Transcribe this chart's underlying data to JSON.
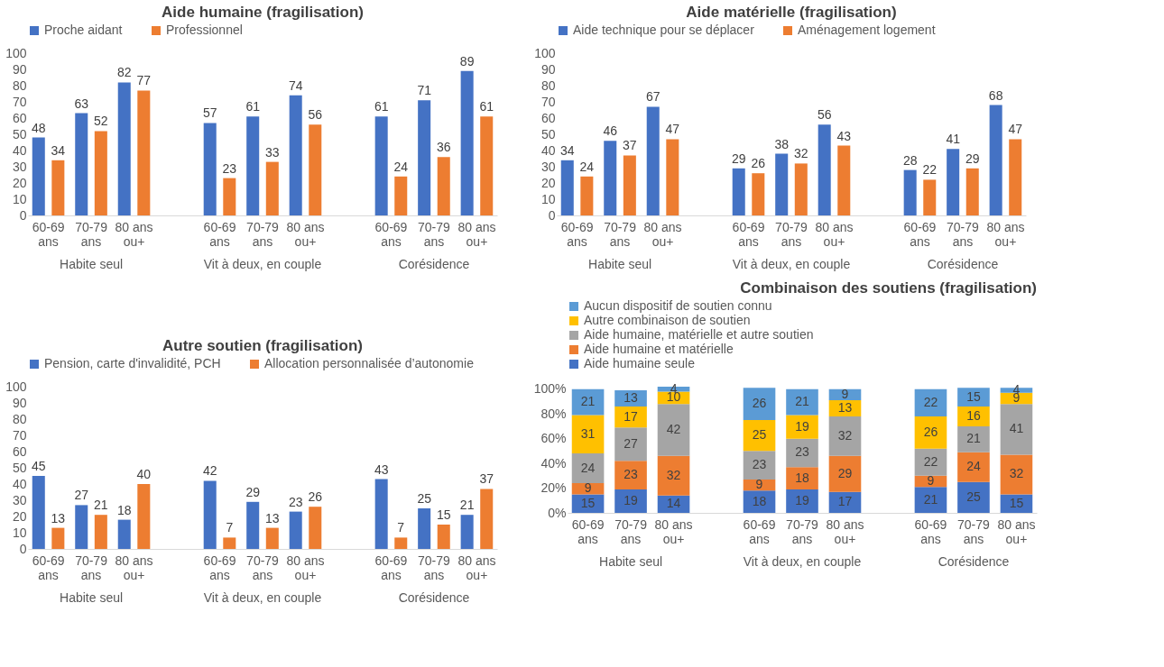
{
  "chart_data": [
    {
      "type": "bar",
      "title": "Aide humaine (fragilisation)",
      "categories": [
        "60-69 ans",
        "70-79 ans",
        "80 ans ou+",
        null,
        "60-69 ans",
        "70-79 ans",
        "80 ans ou+",
        null,
        "60-69 ans",
        "70-79 ans",
        "80 ans ou+"
      ],
      "series": [
        {
          "name": "Proche aidant",
          "color": "#4472c4",
          "values": [
            48,
            63,
            82,
            null,
            57,
            61,
            74,
            null,
            61,
            71,
            89
          ]
        },
        {
          "name": "Professionnel",
          "color": "#ed7d31",
          "values": [
            34,
            52,
            77,
            null,
            23,
            33,
            56,
            null,
            24,
            36,
            61
          ]
        }
      ],
      "ylim": [
        0,
        100
      ],
      "yticks": [
        0,
        10,
        20,
        30,
        40,
        50,
        60,
        70,
        80,
        90,
        100
      ],
      "data_labels": true,
      "legend": "top",
      "grid": false,
      "annotations": [
        "Habite seul",
        "Vit à deux, en couple",
        "Corésidence"
      ]
    },
    {
      "type": "bar",
      "title": "Aide matérielle (fragilisation)",
      "categories": [
        "60-69 ans",
        "70-79 ans",
        "80 ans ou+",
        null,
        "60-69 ans",
        "70-79 ans",
        "80 ans ou+",
        null,
        "60-69 ans",
        "70-79 ans",
        "80 ans ou+"
      ],
      "series": [
        {
          "name": "Aide technique pour se déplacer",
          "color": "#4472c4",
          "values": [
            34,
            46,
            67,
            null,
            29,
            38,
            56,
            null,
            28,
            41,
            68
          ]
        },
        {
          "name": "Aménagement logement",
          "color": "#ed7d31",
          "values": [
            24,
            37,
            47,
            null,
            26,
            32,
            43,
            null,
            22,
            29,
            47
          ]
        }
      ],
      "ylim": [
        0,
        100
      ],
      "yticks": [
        0,
        10,
        20,
        30,
        40,
        50,
        60,
        70,
        80,
        90,
        100
      ],
      "data_labels": true,
      "legend": "top",
      "grid": false,
      "annotations": [
        "Habite seul",
        "Vit à deux, en couple",
        "Corésidence"
      ]
    },
    {
      "type": "bar",
      "title": "Autre soutien (fragilisation)",
      "categories": [
        "60-69 ans",
        "70-79 ans",
        "80 ans ou+",
        null,
        "60-69 ans",
        "70-79 ans",
        "80 ans ou+",
        null,
        "60-69 ans",
        "70-79 ans",
        "80 ans ou+"
      ],
      "series": [
        {
          "name": "Pension, carte d'invalidité, PCH",
          "color": "#4472c4",
          "values": [
            45,
            27,
            18,
            null,
            42,
            29,
            23,
            null,
            43,
            25,
            21
          ]
        },
        {
          "name": "Allocation personnalisée d’autonomie",
          "color": "#ed7d31",
          "values": [
            13,
            21,
            40,
            null,
            7,
            13,
            26,
            null,
            7,
            15,
            37
          ]
        }
      ],
      "ylim": [
        0,
        100
      ],
      "yticks": [
        0,
        10,
        20,
        30,
        40,
        50,
        60,
        70,
        80,
        90,
        100
      ],
      "data_labels": true,
      "legend": "top",
      "grid": false,
      "annotations": [
        "Habite seul",
        "Vit à deux, en couple",
        "Corésidence"
      ]
    },
    {
      "type": "bar",
      "stacked": true,
      "title": "Combinaison des soutiens (fragilisation)",
      "categories": [
        "60-69 ans",
        "70-79 ans",
        "80 ans ou+",
        null,
        "60-69 ans",
        "70-79 ans",
        "80 ans ou+",
        null,
        "60-69 ans",
        "70-79 ans",
        "80 ans ou+"
      ],
      "series": [
        {
          "name": "Aide humaine seule",
          "color": "#4472c4",
          "values": [
            15,
            19,
            14,
            null,
            18,
            19,
            17,
            null,
            21,
            25,
            15
          ]
        },
        {
          "name": "Aide humaine et matérielle",
          "color": "#ed7d31",
          "values": [
            9,
            23,
            32,
            null,
            9,
            18,
            29,
            null,
            9,
            24,
            32
          ]
        },
        {
          "name": "Aide humaine, matérielle et autre soutien",
          "color": "#a5a5a5",
          "values": [
            24,
            27,
            42,
            null,
            23,
            23,
            32,
            null,
            22,
            21,
            41
          ]
        },
        {
          "name": "Autre combinaison de soutien",
          "color": "#ffc000",
          "values": [
            31,
            17,
            10,
            null,
            25,
            19,
            13,
            null,
            26,
            16,
            9
          ]
        },
        {
          "name": "Aucun dispositif de soutien connu",
          "color": "#5b9bd5",
          "values": [
            21,
            13,
            4,
            null,
            26,
            21,
            9,
            null,
            22,
            15,
            4
          ]
        }
      ],
      "ylim": [
        0,
        102
      ],
      "yticks": [
        {
          "value": 0,
          "label": "0%"
        },
        {
          "value": 20,
          "label": "20%"
        },
        {
          "value": 40,
          "label": "40%"
        },
        {
          "value": 60,
          "label": "60%"
        },
        {
          "value": 80,
          "label": "80%"
        },
        {
          "value": 100,
          "label": "100%"
        }
      ],
      "data_labels": true,
      "legend": "top left",
      "grid": false,
      "annotations": [
        "Habite seul",
        "Vit à deux, en couple",
        "Corésidence"
      ]
    }
  ]
}
